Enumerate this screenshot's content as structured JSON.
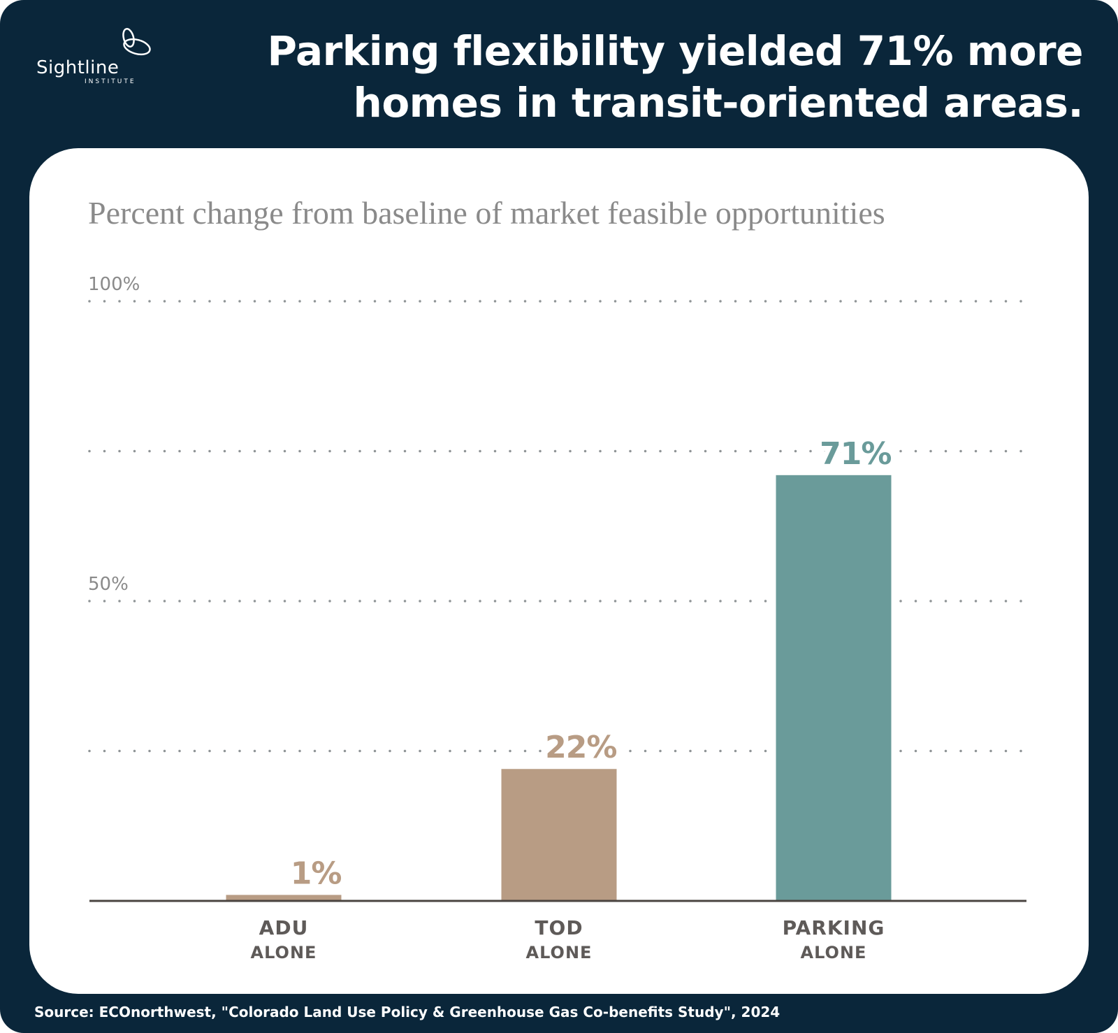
{
  "brand": {
    "name": "Sightline",
    "sub": "INSTITUTE"
  },
  "title": "Parking flexibility yielded 71% more homes in transit-oriented areas.",
  "source": "Source: ECOnorthwest, \"Colorado Land Use Policy & Greenhouse Gas Co-benefits Study\", 2024",
  "chart_data": {
    "type": "bar",
    "title": "Percent change from baseline of market feasible opportunities",
    "categories": [
      [
        "ADU",
        "ALONE"
      ],
      [
        "TOD",
        "ALONE"
      ],
      [
        "PARKING",
        "ALONE"
      ]
    ],
    "values": [
      1,
      22,
      71
    ],
    "data_labels": [
      "1%",
      "22%",
      "71%"
    ],
    "ylim": [
      0,
      100
    ],
    "yticks": [
      0,
      25,
      50,
      75,
      100
    ],
    "ytick_labels": {
      "100": "100%",
      "50": "50%"
    },
    "grid": true,
    "colors": [
      "#b89c84",
      "#b89c84",
      "#6a9b9a"
    ]
  }
}
